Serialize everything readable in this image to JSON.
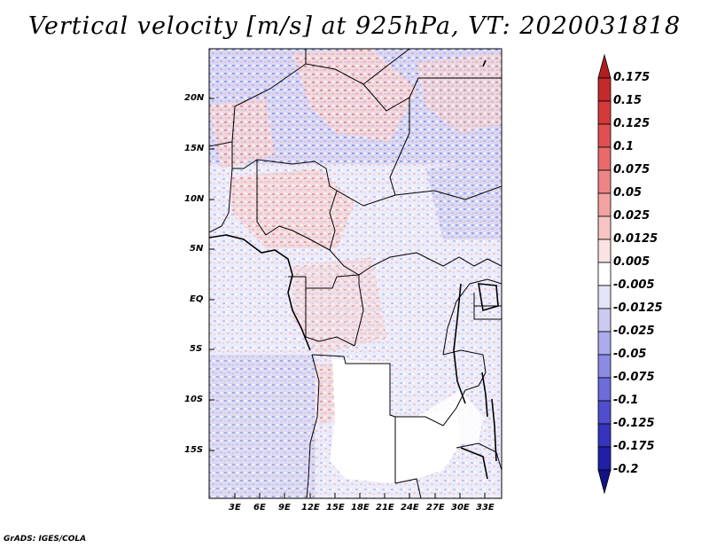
{
  "title": "Vertical velocity [m/s] at 925hPa, VT: 2020031818",
  "footer": "GrADS: IGES/COLA",
  "map": {
    "variable": "Vertical velocity",
    "units": "m/s",
    "level": "925hPa",
    "valid_time": "2020031818",
    "lat_labels": [
      "20N",
      "15N",
      "10N",
      "5N",
      "EQ",
      "5S",
      "10S",
      "15S"
    ],
    "lon_labels": [
      "3E",
      "6E",
      "9E",
      "12E",
      "15E",
      "18E",
      "21E",
      "24E",
      "27E",
      "30E",
      "33E"
    ]
  },
  "colorbar": {
    "labels": [
      "0.175",
      "0.15",
      "0.125",
      "0.1",
      "0.075",
      "0.05",
      "0.025",
      "0.0125",
      "0.005",
      "-0.005",
      "-0.0125",
      "-0.025",
      "-0.05",
      "-0.075",
      "-0.1",
      "-0.125",
      "-0.175",
      "-0.2"
    ],
    "colors": [
      "#b21e1e",
      "#c42a2a",
      "#d43a3a",
      "#e05050",
      "#e86a6a",
      "#ee8585",
      "#f3a2a2",
      "#f8c4c4",
      "#fce3e3",
      "#ffffff",
      "#e4e4f8",
      "#cacaf2",
      "#ababee",
      "#8b8be6",
      "#6c6cda",
      "#4e4ece",
      "#3434bc",
      "#2020a6",
      "#12128a"
    ]
  }
}
